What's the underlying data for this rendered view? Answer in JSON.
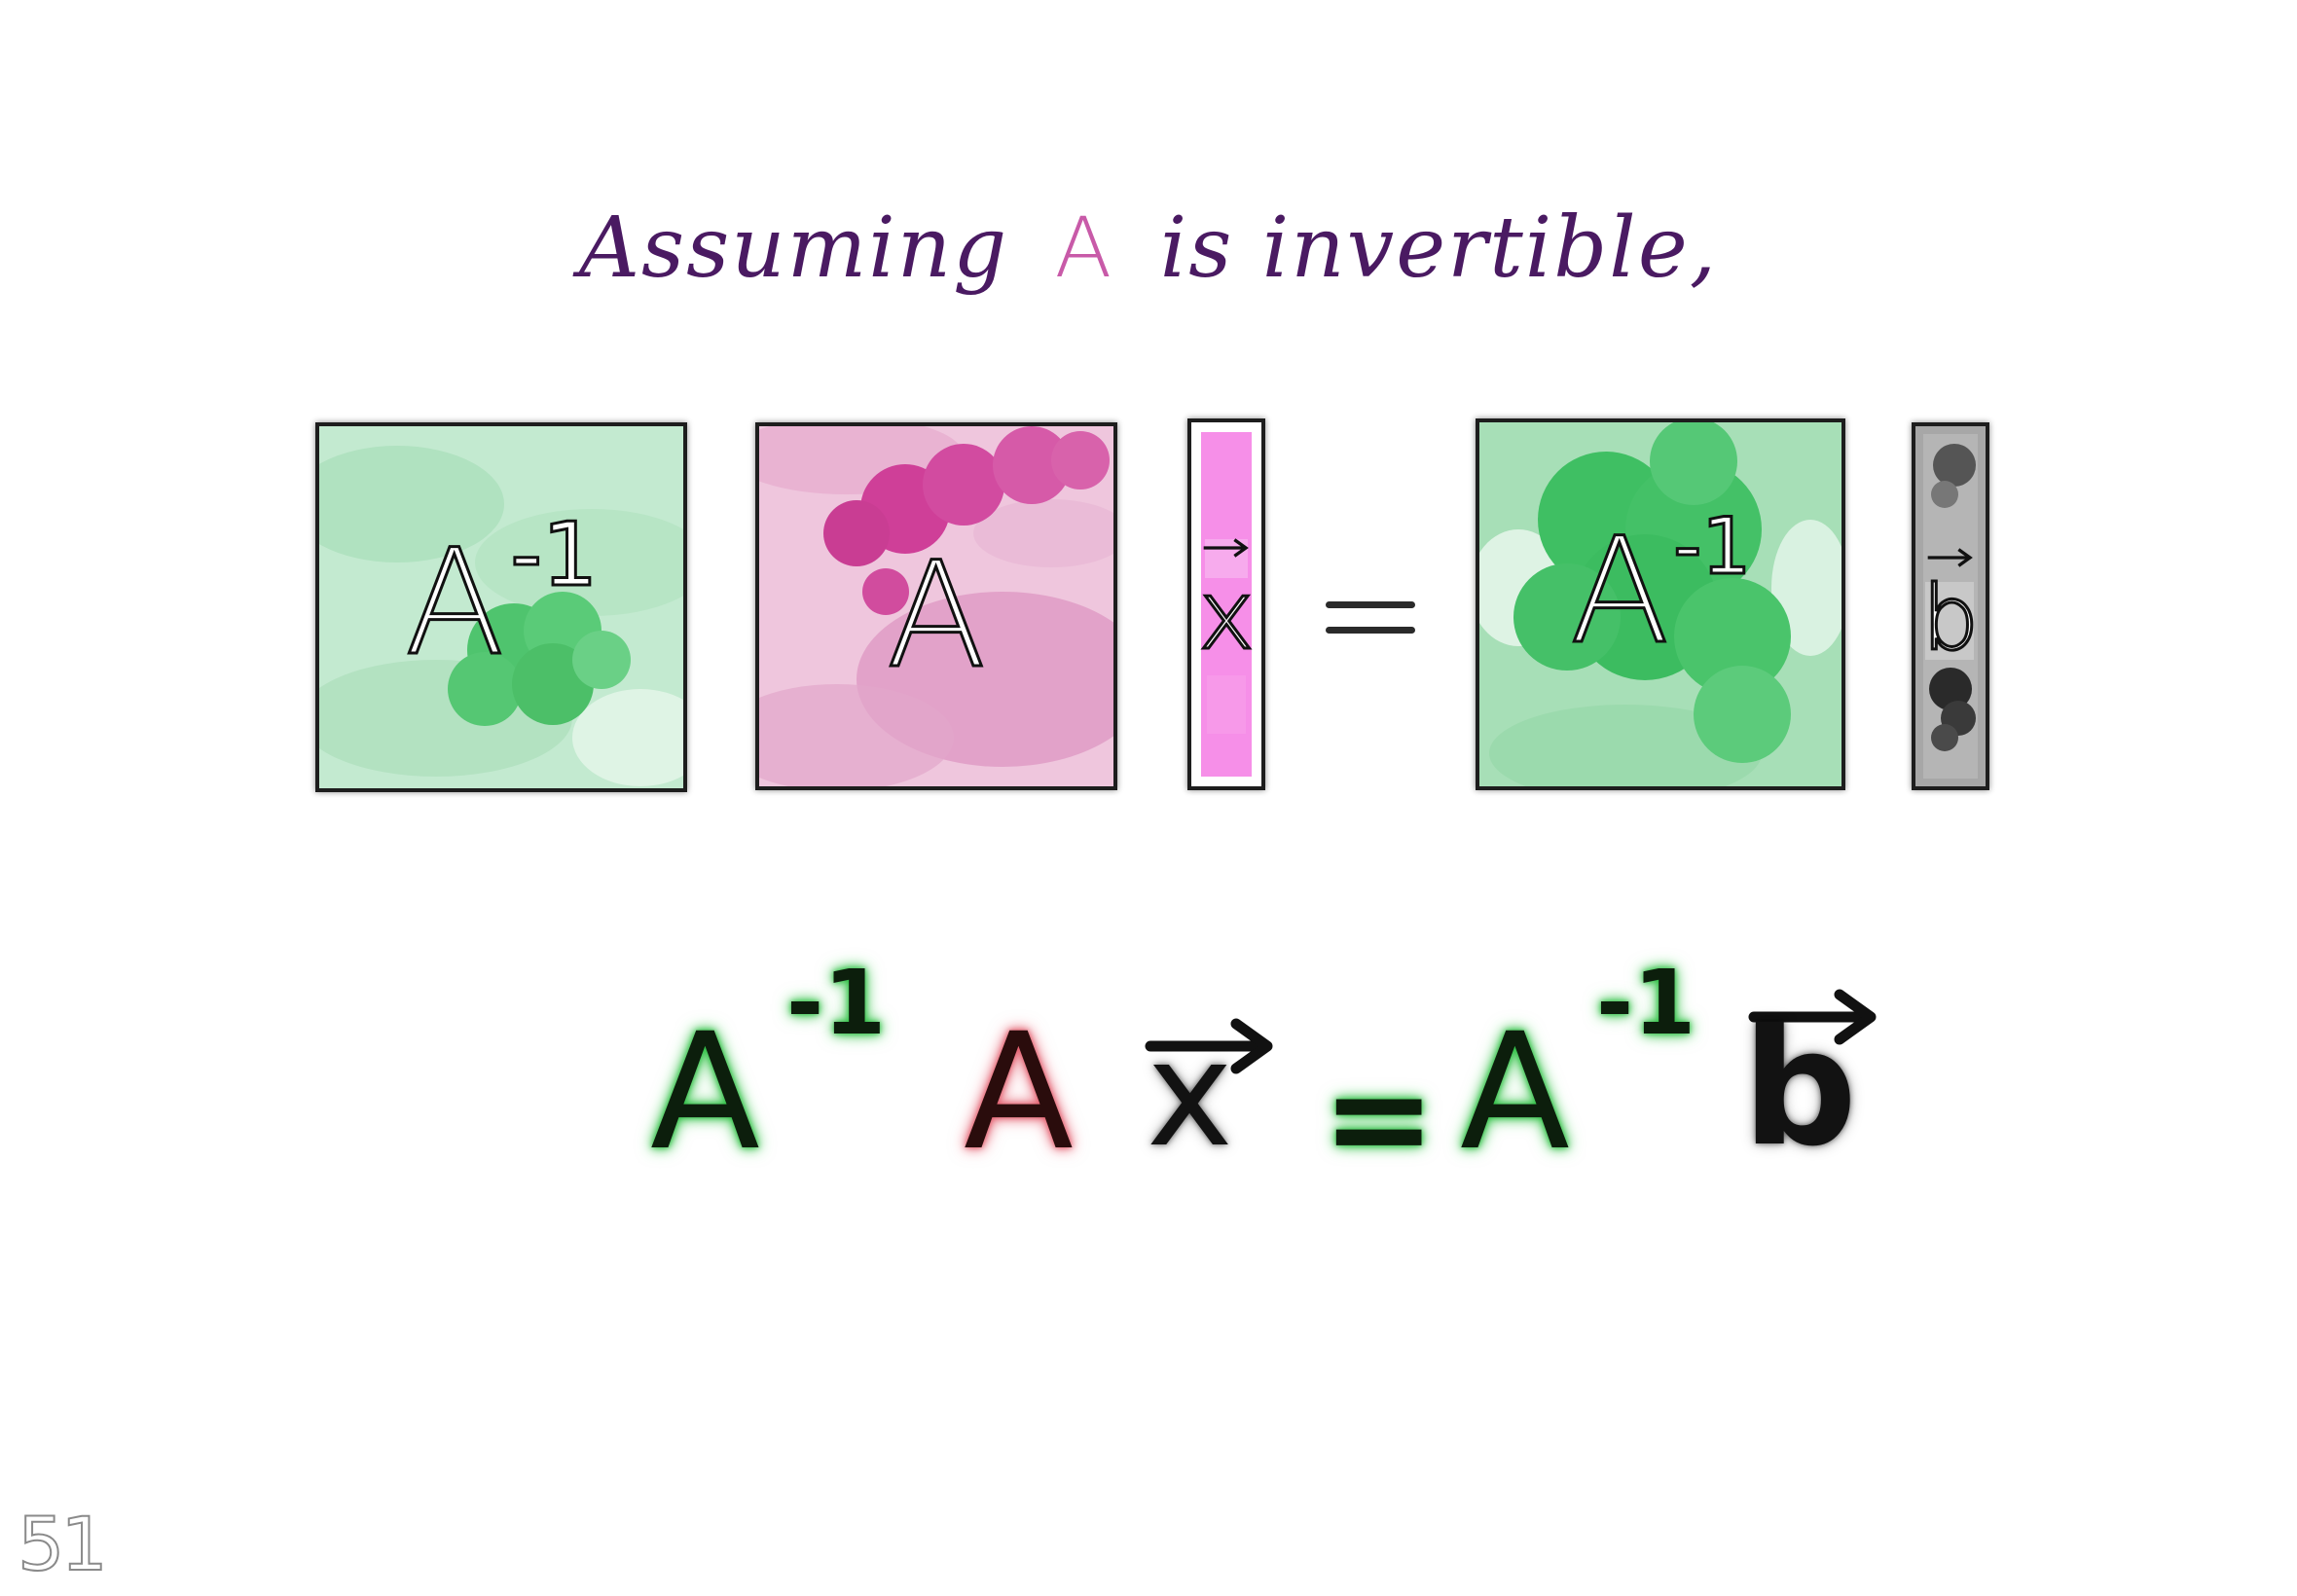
{
  "title": {
    "prefix": "Assuming",
    "matrix": "A",
    "suffix": "is invertible,"
  },
  "diagram": {
    "left_factor_label": "A",
    "left_factor_exponent": "-1",
    "matrix_label": "A",
    "vector_x_label": "x",
    "equals": "=",
    "right_factor_label": "A",
    "right_factor_exponent": "-1",
    "vector_b_label": "b",
    "colors": {
      "inverse_green": "#3fbf63",
      "inverse_green_light": "#b9e6c6",
      "matrix_pink": "#cf4a9e",
      "matrix_pink_light": "#eab8d6",
      "vector_x_magenta": "#f48ce6",
      "vector_b_gray": "#9a9a9a"
    }
  },
  "equation": {
    "term1_base": "A",
    "term1_exponent": "-1",
    "term2": "A",
    "term3": "x",
    "equals": "=",
    "term4_base": "A",
    "term4_exponent": "-1",
    "term5": "b"
  },
  "page_number": "51"
}
